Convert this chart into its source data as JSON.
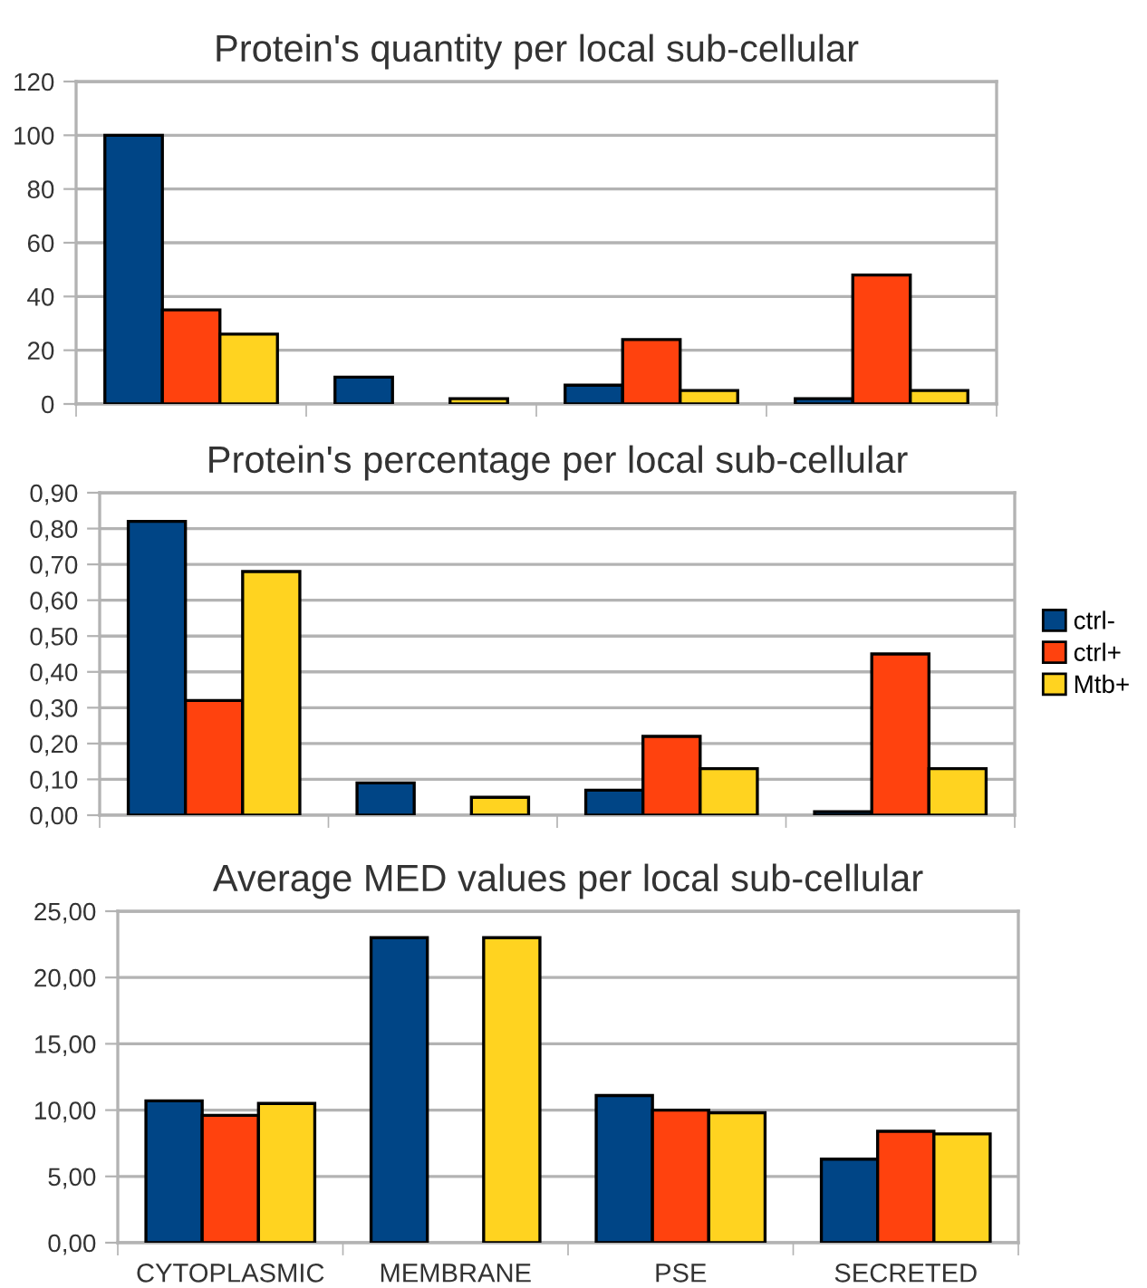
{
  "chart_data": [
    {
      "type": "bar",
      "title": "Protein's quantity per local sub-cellular",
      "categories": [
        null,
        null,
        null,
        null
      ],
      "series": [
        {
          "color": "#004586",
          "values": [
            100,
            10,
            7,
            2
          ]
        },
        {
          "color": "#ff420e",
          "values": [
            35,
            null,
            24,
            48
          ]
        },
        {
          "color": "#ffd320",
          "values": [
            26,
            2,
            5,
            5
          ]
        }
      ],
      "ylim": [
        0,
        120
      ],
      "yticks": [
        0,
        20,
        40,
        60,
        80,
        100,
        120
      ],
      "grid": "y",
      "tick_labels": "y",
      "legend": false
    },
    {
      "type": "bar",
      "title": "Protein's percentage per local sub-cellular",
      "categories": [
        null,
        null,
        null,
        null
      ],
      "series": [
        {
          "name": "ctrl-",
          "color": "#004586",
          "values": [
            0.82,
            0.09,
            0.07,
            0.01
          ]
        },
        {
          "name": "ctrl+",
          "color": "#ff420e",
          "values": [
            0.32,
            null,
            0.22,
            0.45
          ]
        },
        {
          "name": "Mtb+",
          "color": "#ffd320",
          "values": [
            0.68,
            0.05,
            0.13,
            0.13
          ]
        }
      ],
      "ylim": [
        0,
        0.9
      ],
      "yticks": [
        {
          "value": 0,
          "label": "0,00"
        },
        {
          "value": 0.1,
          "label": "0,10"
        },
        {
          "value": 0.2,
          "label": "0,20"
        },
        {
          "value": 0.3,
          "label": "0,30"
        },
        {
          "value": 0.4,
          "label": "0,40"
        },
        {
          "value": 0.5,
          "label": "0,50"
        },
        {
          "value": 0.6,
          "label": "0,60"
        },
        {
          "value": 0.7,
          "label": "0,70"
        },
        {
          "value": 0.8,
          "label": "0,80"
        },
        {
          "value": 0.9,
          "label": "0,90"
        }
      ],
      "grid": "y",
      "tick_labels": "y",
      "legend": "right"
    },
    {
      "type": "bar",
      "title": "Average MED values per local sub-cellular",
      "categories": [
        "CYTOPLASMIC",
        "MEMBRANE",
        "PSE",
        "SECRETED"
      ],
      "series": [
        {
          "color": "#004586",
          "values": [
            10.7,
            23.0,
            11.1,
            6.3
          ]
        },
        {
          "color": "#ff420e",
          "values": [
            9.6,
            null,
            10.0,
            8.4
          ]
        },
        {
          "color": "#ffd320",
          "values": [
            10.5,
            23.0,
            9.8,
            8.2
          ]
        }
      ],
      "ylim": [
        0,
        25
      ],
      "yticks": [
        {
          "value": 0,
          "label": "0,00"
        },
        {
          "value": 5,
          "label": "5,00"
        },
        {
          "value": 10,
          "label": "10,00"
        },
        {
          "value": 15,
          "label": "15,00"
        },
        {
          "value": 20,
          "label": "20,00"
        },
        {
          "value": 25,
          "label": "25,00"
        }
      ],
      "grid": "y",
      "legend": false
    }
  ]
}
